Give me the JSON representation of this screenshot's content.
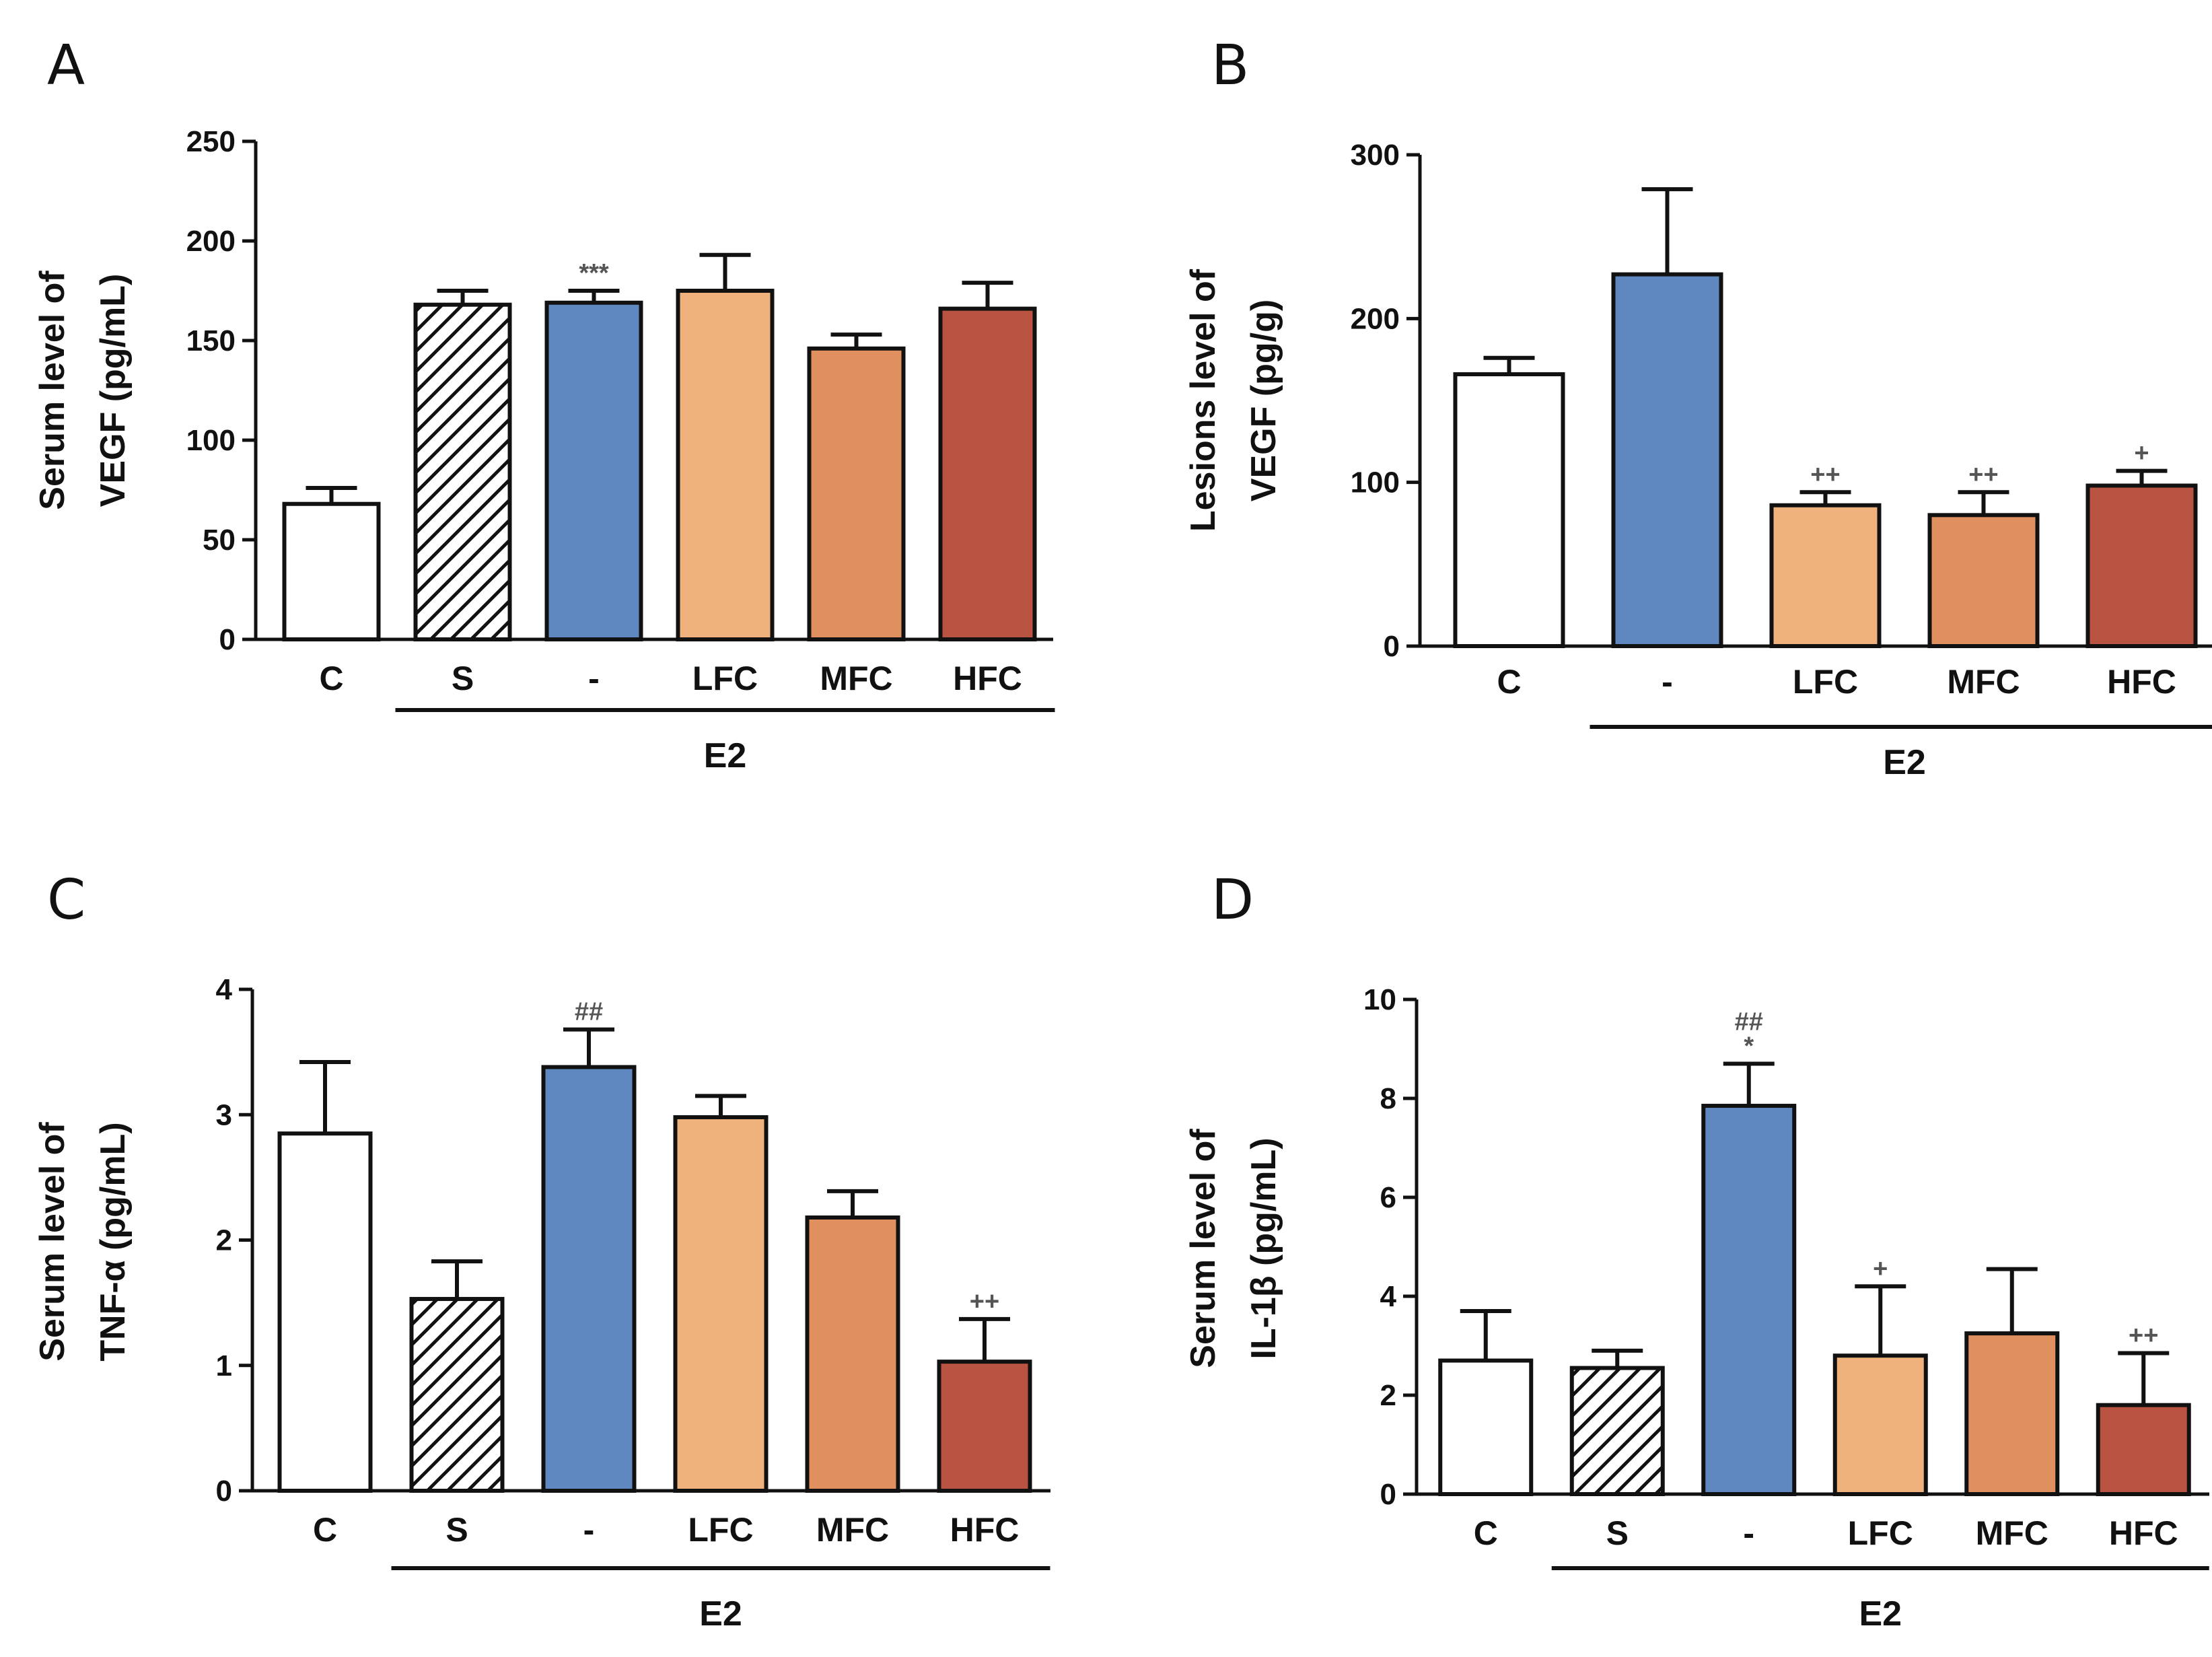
{
  "chart_data": [
    {
      "panel": "A",
      "type": "bar",
      "ylabel_lines": [
        "Serum level of",
        "VEGF (pg/mL)"
      ],
      "categories": [
        "C",
        "S",
        "-",
        "LFC",
        "MFC",
        "HFC"
      ],
      "values": [
        68,
        168,
        169,
        175,
        146,
        166
      ],
      "errors": [
        8,
        7,
        6,
        18,
        7,
        13
      ],
      "fills": [
        "#ffffff",
        "hatch",
        "#5f87c0",
        "#f0b27c",
        "#e08f5e",
        "#b95442"
      ],
      "annotations": [
        "",
        "",
        "***",
        "",
        "",
        ""
      ],
      "yticks": [
        0,
        50,
        100,
        150,
        200,
        250
      ],
      "ylim": [
        0,
        250
      ],
      "group": {
        "label": "E2",
        "from": 1,
        "to": 5
      }
    },
    {
      "panel": "B",
      "type": "bar",
      "ylabel_lines": [
        "Lesions level of",
        "VEGF (pg/g)"
      ],
      "categories": [
        "C",
        "-",
        "LFC",
        "MFC",
        "HFC"
      ],
      "values": [
        166,
        227,
        86,
        80,
        98
      ],
      "errors": [
        10,
        52,
        8,
        14,
        9
      ],
      "fills": [
        "#ffffff",
        "#5f87c0",
        "#f0b27c",
        "#e08f5e",
        "#b95442"
      ],
      "annotations": [
        "",
        "",
        "++",
        "++",
        "+"
      ],
      "yticks": [
        0,
        100,
        200,
        300
      ],
      "ylim": [
        0,
        300
      ],
      "group": {
        "label": "E2",
        "from": 1,
        "to": 4
      }
    },
    {
      "panel": "C",
      "type": "bar",
      "ylabel_lines": [
        "Serum level of",
        "TNF-α (pg/mL)"
      ],
      "categories": [
        "C",
        "S",
        "-",
        "LFC",
        "MFC",
        "HFC"
      ],
      "values": [
        2.85,
        1.53,
        3.38,
        2.98,
        2.18,
        1.03
      ],
      "errors": [
        0.57,
        0.3,
        0.3,
        0.17,
        0.21,
        0.34
      ],
      "fills": [
        "#ffffff",
        "hatch",
        "#5f87c0",
        "#f0b27c",
        "#e08f5e",
        "#b95442"
      ],
      "annotations": [
        "",
        "",
        "##",
        "",
        "",
        "++"
      ],
      "yticks": [
        0,
        1,
        2,
        3,
        4
      ],
      "ylim": [
        0,
        4
      ],
      "group": {
        "label": "E2",
        "from": 1,
        "to": 5
      }
    },
    {
      "panel": "D",
      "type": "bar",
      "ylabel_lines": [
        "Serum level of",
        "IL-1β (pg/mL)"
      ],
      "categories": [
        "C",
        "S",
        "-",
        "LFC",
        "MFC",
        "HFC"
      ],
      "values": [
        2.7,
        2.55,
        7.85,
        2.8,
        3.25,
        1.8
      ],
      "errors": [
        1.0,
        0.35,
        0.85,
        1.4,
        1.3,
        1.05
      ],
      "fills": [
        "#ffffff",
        "hatch",
        "#5f87c0",
        "#f0b27c",
        "#e08f5e",
        "#b95442"
      ],
      "annotations": [
        "",
        "",
        "##\n*",
        "+",
        "",
        "++"
      ],
      "yticks": [
        0,
        2,
        4,
        6,
        8,
        10
      ],
      "ylim": [
        0,
        10
      ],
      "group": {
        "label": "E2",
        "from": 1,
        "to": 5
      }
    }
  ]
}
